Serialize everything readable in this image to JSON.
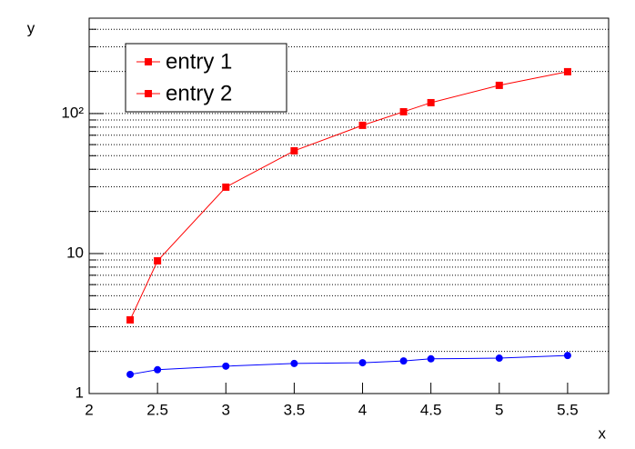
{
  "chart_data": {
    "type": "line",
    "x_label": "x",
    "y_label": "y",
    "log_y": true,
    "grid_y": true,
    "xlim": [
      2,
      5.8
    ],
    "xticks": [
      2,
      2.5,
      3,
      3.5,
      4,
      4.5,
      5,
      5.5
    ],
    "ylim": [
      1,
      480
    ],
    "yticks": [
      1,
      10,
      {
        "value": 100,
        "label": "10²"
      }
    ],
    "yminorticks": [
      2,
      3,
      4,
      5,
      6,
      7,
      8,
      9,
      20,
      30,
      40,
      50,
      60,
      70,
      80,
      90,
      200,
      300,
      400
    ],
    "legend": "top-left",
    "series": [
      {
        "name": "entry 1",
        "color": "#ff0000",
        "legend_color": "#ff0000",
        "marker": "square",
        "x": [
          2.3,
          2.5,
          3,
          3.5,
          4,
          4.3,
          4.5,
          5,
          5.5
        ],
        "values": [
          3.36,
          8.87,
          29.8,
          54.2,
          82.4,
          103,
          119.6,
          159,
          199
        ]
      },
      {
        "name": "entry 2",
        "color": "#0000ff",
        "legend_color": "#ff0000",
        "marker": "circle",
        "x": [
          2.3,
          2.5,
          3,
          3.5,
          4,
          4.3,
          4.5,
          5,
          5.5
        ],
        "values": [
          1.37,
          1.48,
          1.57,
          1.64,
          1.66,
          1.71,
          1.77,
          1.79,
          1.87
        ]
      }
    ]
  }
}
